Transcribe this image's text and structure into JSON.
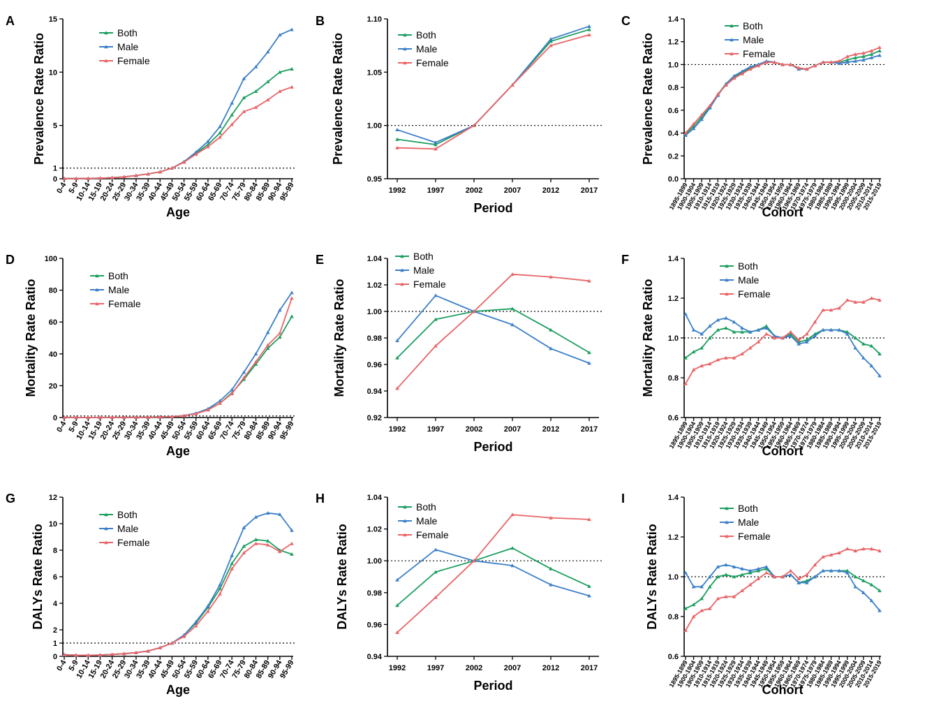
{
  "colors": {
    "Both": "#1a9e5f",
    "Male": "#3b7fc9",
    "Female": "#ea6466"
  },
  "chart_data": [
    {
      "panel": "A",
      "type": "line",
      "xlabel": "Age",
      "ylabel": "Prevalence Rate Ratio",
      "ylim": [
        0,
        15
      ],
      "yticks": [
        0,
        1,
        5,
        10,
        15
      ],
      "ref_line": 1,
      "categories": [
        "0-4",
        "5-9",
        "10-14",
        "15-19",
        "20-24",
        "25-29",
        "30-34",
        "35-39",
        "40-44",
        "45-49",
        "50-54",
        "55-59",
        "60-64",
        "65-69",
        "70-74",
        "75-79",
        "80-84",
        "85-89",
        "90-94",
        "95-99"
      ],
      "series": [
        {
          "name": "Both",
          "values": [
            0.02,
            0.02,
            0.03,
            0.05,
            0.1,
            0.18,
            0.3,
            0.45,
            0.65,
            1.0,
            1.6,
            2.4,
            3.2,
            4.3,
            6.0,
            7.6,
            8.2,
            9.1,
            10.0,
            10.3
          ]
        },
        {
          "name": "Male",
          "values": [
            0.02,
            0.02,
            0.03,
            0.05,
            0.1,
            0.18,
            0.3,
            0.45,
            0.65,
            1.0,
            1.6,
            2.5,
            3.5,
            4.9,
            7.1,
            9.4,
            10.5,
            11.9,
            13.5,
            14.0
          ]
        },
        {
          "name": "Female",
          "values": [
            0.02,
            0.02,
            0.03,
            0.05,
            0.1,
            0.18,
            0.3,
            0.45,
            0.65,
            1.0,
            1.55,
            2.3,
            3.0,
            3.9,
            5.1,
            6.3,
            6.7,
            7.4,
            8.2,
            8.6
          ]
        }
      ]
    },
    {
      "panel": "B",
      "type": "line",
      "xlabel": "Period",
      "ylabel": "Prevalence Rate Ratio",
      "ylim": [
        0.95,
        1.1
      ],
      "yticks": [
        0.95,
        1.0,
        1.05,
        1.1
      ],
      "ref_line": 1,
      "categories": [
        "1992",
        "1997",
        "2002",
        "2007",
        "2012",
        "2017"
      ],
      "series": [
        {
          "name": "Both",
          "values": [
            0.987,
            0.982,
            1.0,
            1.038,
            1.079,
            1.09
          ]
        },
        {
          "name": "Male",
          "values": [
            0.996,
            0.984,
            1.0,
            1.038,
            1.081,
            1.093
          ]
        },
        {
          "name": "Female",
          "values": [
            0.979,
            0.978,
            1.0,
            1.038,
            1.075,
            1.085
          ]
        }
      ]
    },
    {
      "panel": "C",
      "type": "line",
      "xlabel": "Cohort",
      "ylabel": "Prevalence Rate Ratio",
      "ylim": [
        0,
        1.4
      ],
      "yticks": [
        0,
        0.2,
        0.4,
        0.6,
        0.8,
        1.0,
        1.2,
        1.4
      ],
      "ref_line": 1,
      "categories": [
        "1895-1899",
        "1900-1904",
        "1905-1909",
        "1910-1914",
        "1915-1919",
        "1920-1924",
        "1925-1929",
        "1930-1934",
        "1935-1939",
        "1940-1944",
        "1945-1949",
        "1950-1954",
        "1955-1959",
        "1960-1964",
        "1965-1969",
        "1970-1974",
        "1975-1979",
        "1980-1984",
        "1985-1989",
        "1990-1994",
        "1995-1999",
        "2000-2004",
        "2005-2009",
        "2010-2014",
        "2015-2019"
      ],
      "series": [
        {
          "name": "Both",
          "values": [
            0.39,
            0.46,
            0.54,
            0.63,
            0.74,
            0.83,
            0.89,
            0.93,
            0.97,
            1.0,
            1.02,
            1.02,
            1.0,
            1.0,
            0.97,
            0.96,
            0.99,
            1.02,
            1.02,
            1.02,
            1.04,
            1.06,
            1.07,
            1.09,
            1.12
          ]
        },
        {
          "name": "Male",
          "values": [
            0.38,
            0.44,
            0.52,
            0.62,
            0.73,
            0.83,
            0.9,
            0.94,
            0.98,
            1.0,
            1.03,
            1.02,
            1.0,
            1.0,
            0.96,
            0.96,
            0.99,
            1.02,
            1.02,
            1.01,
            1.02,
            1.03,
            1.04,
            1.06,
            1.08
          ]
        },
        {
          "name": "Female",
          "values": [
            0.4,
            0.48,
            0.56,
            0.64,
            0.74,
            0.82,
            0.88,
            0.92,
            0.96,
            0.99,
            1.02,
            1.02,
            1.0,
            1.0,
            0.97,
            0.96,
            0.99,
            1.02,
            1.02,
            1.03,
            1.07,
            1.09,
            1.1,
            1.12,
            1.15
          ]
        }
      ]
    },
    {
      "panel": "D",
      "type": "line",
      "xlabel": "Age",
      "ylabel": "Mortality Rate Ratio",
      "ylim": [
        0,
        100
      ],
      "yticks": [
        0,
        20,
        40,
        60,
        80,
        100
      ],
      "ref_line": 1,
      "categories": [
        "0-4",
        "5-9",
        "10-14",
        "15-19",
        "20-24",
        "25-29",
        "30-34",
        "35-39",
        "40-44",
        "45-49",
        "50-54",
        "55-59",
        "60-64",
        "65-69",
        "70-74",
        "75-79",
        "80-84",
        "85-89",
        "90-94",
        "95-99"
      ],
      "series": [
        {
          "name": "Both",
          "values": [
            0.1,
            0.05,
            0.05,
            0.05,
            0.1,
            0.1,
            0.15,
            0.2,
            0.35,
            0.6,
            1.2,
            2.5,
            5,
            9,
            15.5,
            24,
            33.5,
            43.5,
            50.5,
            63.5
          ]
        },
        {
          "name": "Male",
          "values": [
            0.1,
            0.05,
            0.05,
            0.05,
            0.1,
            0.1,
            0.15,
            0.2,
            0.35,
            0.6,
            1.2,
            2.7,
            5.5,
            10.5,
            17.5,
            28.5,
            40,
            53.5,
            67.5,
            78.5
          ]
        },
        {
          "name": "Female",
          "values": [
            0.1,
            0.05,
            0.05,
            0.05,
            0.1,
            0.1,
            0.15,
            0.2,
            0.35,
            0.6,
            1.1,
            2.4,
            4.8,
            9,
            15,
            25,
            35,
            45.5,
            53,
            75
          ]
        }
      ]
    },
    {
      "panel": "E",
      "type": "line",
      "xlabel": "Period",
      "ylabel": "Mortality Rate Ratio",
      "ylim": [
        0.92,
        1.04
      ],
      "yticks": [
        0.92,
        0.94,
        0.96,
        0.98,
        1.0,
        1.02,
        1.04
      ],
      "ref_line": 1,
      "categories": [
        "1992",
        "1997",
        "2002",
        "2007",
        "2012",
        "2017"
      ],
      "series": [
        {
          "name": "Both",
          "values": [
            0.965,
            0.994,
            1.0,
            1.002,
            0.986,
            0.969
          ]
        },
        {
          "name": "Male",
          "values": [
            0.978,
            1.012,
            1.0,
            0.99,
            0.972,
            0.961
          ]
        },
        {
          "name": "Female",
          "values": [
            0.942,
            0.974,
            1.0,
            1.028,
            1.026,
            1.023
          ]
        }
      ]
    },
    {
      "panel": "F",
      "type": "line",
      "xlabel": "Cohort",
      "ylabel": "Mortality Rate Ratio",
      "ylim": [
        0.6,
        1.4
      ],
      "yticks": [
        0.6,
        0.8,
        1.0,
        1.2,
        1.4
      ],
      "ref_line": 1,
      "categories": [
        "1895-1899",
        "1900-1904",
        "1905-1909",
        "1910-1914",
        "1915-1919",
        "1920-1924",
        "1925-1929",
        "1930-1934",
        "1935-1939",
        "1940-1944",
        "1945-1949",
        "1950-1954",
        "1955-1959",
        "1960-1964",
        "1965-1969",
        "1970-1974",
        "1975-1979",
        "1980-1984",
        "1985-1989",
        "1990-1994",
        "1995-1999",
        "2000-2004",
        "2005-2009",
        "2010-2014",
        "2015-2019"
      ],
      "series": [
        {
          "name": "Both",
          "values": [
            0.9,
            0.93,
            0.95,
            1.0,
            1.04,
            1.05,
            1.03,
            1.03,
            1.03,
            1.04,
            1.06,
            1.01,
            1.0,
            1.02,
            0.98,
            0.99,
            1.02,
            1.04,
            1.04,
            1.04,
            1.03,
            1.0,
            0.97,
            0.96,
            0.92
          ]
        },
        {
          "name": "Male",
          "values": [
            1.12,
            1.04,
            1.02,
            1.06,
            1.09,
            1.1,
            1.08,
            1.05,
            1.03,
            1.04,
            1.05,
            1.01,
            1.0,
            1.01,
            0.97,
            0.98,
            1.01,
            1.04,
            1.04,
            1.04,
            1.02,
            0.95,
            0.9,
            0.86,
            0.81
          ]
        },
        {
          "name": "Female",
          "values": [
            0.77,
            0.84,
            0.86,
            0.87,
            0.89,
            0.9,
            0.9,
            0.92,
            0.95,
            0.98,
            1.02,
            1.0,
            1.0,
            1.03,
            0.99,
            1.02,
            1.08,
            1.14,
            1.14,
            1.15,
            1.19,
            1.18,
            1.18,
            1.2,
            1.19
          ]
        }
      ]
    },
    {
      "panel": "G",
      "type": "line",
      "xlabel": "Age",
      "ylabel": "DALYs Rate Ratio",
      "ylim": [
        0,
        12
      ],
      "yticks": [
        0,
        1,
        2,
        4,
        6,
        8,
        10,
        12
      ],
      "ref_line": 1,
      "categories": [
        "0-4",
        "5-9",
        "10-14",
        "15-19",
        "20-24",
        "25-29",
        "30-34",
        "35-39",
        "40-44",
        "45-49",
        "50-54",
        "55-59",
        "60-64",
        "65-69",
        "70-74",
        "75-79",
        "80-84",
        "85-89",
        "90-94",
        "95-99"
      ],
      "series": [
        {
          "name": "Both",
          "values": [
            0.12,
            0.09,
            0.08,
            0.1,
            0.14,
            0.2,
            0.28,
            0.4,
            0.65,
            1.0,
            1.6,
            2.5,
            3.7,
            5.1,
            7.0,
            8.3,
            8.8,
            8.7,
            8.0,
            7.7
          ]
        },
        {
          "name": "Male",
          "values": [
            0.12,
            0.09,
            0.08,
            0.1,
            0.14,
            0.2,
            0.28,
            0.4,
            0.65,
            1.0,
            1.6,
            2.6,
            3.8,
            5.4,
            7.6,
            9.7,
            10.5,
            10.8,
            10.7,
            9.5
          ]
        },
        {
          "name": "Female",
          "values": [
            0.12,
            0.09,
            0.08,
            0.1,
            0.14,
            0.2,
            0.28,
            0.4,
            0.65,
            1.0,
            1.5,
            2.3,
            3.4,
            4.7,
            6.6,
            7.8,
            8.5,
            8.4,
            7.9,
            8.5
          ]
        }
      ]
    },
    {
      "panel": "H",
      "type": "line",
      "xlabel": "Period",
      "ylabel": "DALYs Rate Ratio",
      "ylim": [
        0.94,
        1.04
      ],
      "yticks": [
        0.94,
        0.96,
        0.98,
        1.0,
        1.02,
        1.04
      ],
      "ref_line": 1,
      "categories": [
        "1992",
        "1997",
        "2002",
        "2007",
        "2012",
        "2017"
      ],
      "series": [
        {
          "name": "Both",
          "values": [
            0.972,
            0.993,
            1.0,
            1.008,
            0.995,
            0.984
          ]
        },
        {
          "name": "Male",
          "values": [
            0.988,
            1.007,
            1.0,
            0.997,
            0.985,
            0.978
          ]
        },
        {
          "name": "Female",
          "values": [
            0.955,
            0.977,
            1.0,
            1.029,
            1.027,
            1.026
          ]
        }
      ]
    },
    {
      "panel": "I",
      "type": "line",
      "xlabel": "Cohort",
      "ylabel": "DALYs Rate Ratio",
      "ylim": [
        0.6,
        1.4
      ],
      "yticks": [
        0.6,
        0.8,
        1.0,
        1.2,
        1.4
      ],
      "ref_line": 1,
      "categories": [
        "1895-1899",
        "1900-1904",
        "1905-1909",
        "1910-1914",
        "1915-1919",
        "1920-1924",
        "1925-1929",
        "1930-1934",
        "1935-1939",
        "1940-1944",
        "1945-1949",
        "1950-1954",
        "1955-1959",
        "1960-1964",
        "1965-1969",
        "1970-1974",
        "1975-1979",
        "1980-1984",
        "1985-1989",
        "1990-1994",
        "1995-1999",
        "2000-2004",
        "2005-2009",
        "2010-2014",
        "2015-2019"
      ],
      "series": [
        {
          "name": "Both",
          "values": [
            0.84,
            0.86,
            0.89,
            0.95,
            1.0,
            1.01,
            1.0,
            1.01,
            1.02,
            1.03,
            1.04,
            1.0,
            1.0,
            1.01,
            0.97,
            0.98,
            1.0,
            1.03,
            1.03,
            1.03,
            1.03,
            1.0,
            0.98,
            0.96,
            0.93
          ]
        },
        {
          "name": "Male",
          "values": [
            1.02,
            0.95,
            0.95,
            1.0,
            1.05,
            1.06,
            1.05,
            1.04,
            1.03,
            1.04,
            1.05,
            1.0,
            1.0,
            1.01,
            0.97,
            0.97,
            1.0,
            1.03,
            1.03,
            1.03,
            1.02,
            0.95,
            0.92,
            0.88,
            0.83
          ]
        },
        {
          "name": "Female",
          "values": [
            0.73,
            0.8,
            0.83,
            0.84,
            0.89,
            0.9,
            0.9,
            0.93,
            0.96,
            0.99,
            1.02,
            1.0,
            1.0,
            1.03,
            0.99,
            1.01,
            1.06,
            1.1,
            1.11,
            1.12,
            1.14,
            1.13,
            1.14,
            1.14,
            1.13
          ]
        }
      ]
    }
  ]
}
